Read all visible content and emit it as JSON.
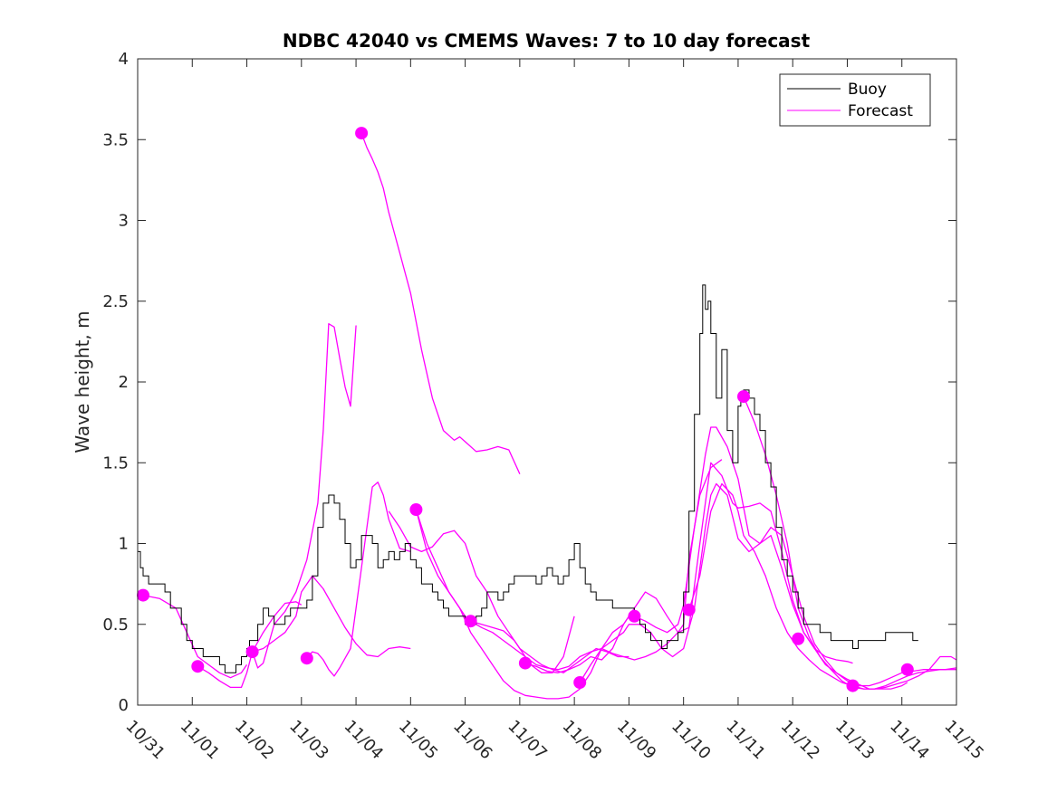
{
  "chart_data": {
    "type": "line",
    "title": "NDBC 42040 vs CMEMS Waves: 7 to 10 day forecast",
    "xlabel": "",
    "ylabel": "Wave height, m",
    "xlim": [
      0,
      15
    ],
    "ylim": [
      0,
      4
    ],
    "x_tick_values": [
      0,
      1,
      2,
      3,
      4,
      5,
      6,
      7,
      8,
      9,
      10,
      11,
      12,
      13,
      14,
      15
    ],
    "x_tick_labels": [
      "10/31",
      "11/01",
      "11/02",
      "11/03",
      "11/04",
      "11/05",
      "11/06",
      "11/07",
      "11/08",
      "11/09",
      "11/10",
      "11/11",
      "11/12",
      "11/13",
      "11/14",
      "11/15"
    ],
    "y_tick_values": [
      0,
      0.5,
      1,
      1.5,
      2,
      2.5,
      3,
      3.5,
      4
    ],
    "y_tick_labels": [
      "0",
      "0.5",
      "1",
      "1.5",
      "2",
      "2.5",
      "3",
      "3.5",
      "4"
    ],
    "legend": {
      "position": "top-right",
      "entries": [
        {
          "name": "Buoy",
          "color": "#000000"
        },
        {
          "name": "Forecast",
          "color": "#ff00ff"
        }
      ]
    },
    "colors": {
      "buoy": "#000000",
      "forecast": "#ff00ff",
      "axis": "#262626"
    },
    "buoy": {
      "name": "Buoy",
      "x": [
        0,
        0.05,
        0.1,
        0.2,
        0.35,
        0.5,
        0.6,
        0.8,
        0.9,
        1.0,
        1.1,
        1.2,
        1.3,
        1.4,
        1.5,
        1.6,
        1.7,
        1.8,
        1.9,
        2.0,
        2.05,
        2.1,
        2.2,
        2.3,
        2.4,
        2.5,
        2.6,
        2.7,
        2.8,
        2.9,
        3.0,
        3.1,
        3.2,
        3.3,
        3.4,
        3.5,
        3.6,
        3.7,
        3.8,
        3.9,
        4.0,
        4.1,
        4.2,
        4.3,
        4.4,
        4.5,
        4.6,
        4.7,
        4.8,
        4.9,
        5.0,
        5.1,
        5.2,
        5.3,
        5.4,
        5.5,
        5.6,
        5.7,
        5.8,
        5.9,
        6.0,
        6.1,
        6.2,
        6.3,
        6.4,
        6.5,
        6.6,
        6.7,
        6.8,
        6.9,
        7.0,
        7.1,
        7.2,
        7.3,
        7.4,
        7.5,
        7.6,
        7.7,
        7.8,
        7.9,
        8.0,
        8.1,
        8.2,
        8.3,
        8.4,
        8.5,
        8.6,
        8.7,
        8.8,
        8.9,
        9.0,
        9.1,
        9.2,
        9.3,
        9.4,
        9.5,
        9.6,
        9.7,
        9.8,
        9.9,
        10.0,
        10.1,
        10.2,
        10.3,
        10.35,
        10.4,
        10.45,
        10.5,
        10.6,
        10.7,
        10.8,
        10.9,
        11.0,
        11.05,
        11.1,
        11.2,
        11.3,
        11.4,
        11.5,
        11.6,
        11.7,
        11.8,
        11.9,
        12.0,
        12.1,
        12.2,
        12.3,
        12.4,
        12.5,
        12.6,
        12.7,
        12.8,
        12.9,
        13.0,
        13.1,
        13.2,
        13.3,
        13.4,
        13.5,
        13.6,
        13.7,
        13.8,
        13.9,
        14.0,
        14.1,
        14.2,
        14.3
      ],
      "y": [
        0.95,
        0.85,
        0.8,
        0.75,
        0.75,
        0.7,
        0.6,
        0.5,
        0.4,
        0.35,
        0.35,
        0.3,
        0.3,
        0.3,
        0.25,
        0.2,
        0.2,
        0.25,
        0.3,
        0.35,
        0.4,
        0.4,
        0.5,
        0.6,
        0.55,
        0.5,
        0.5,
        0.55,
        0.6,
        0.6,
        0.6,
        0.65,
        0.8,
        1.1,
        1.25,
        1.3,
        1.25,
        1.15,
        1.0,
        0.85,
        0.9,
        1.05,
        1.05,
        1.0,
        0.85,
        0.9,
        0.95,
        0.9,
        0.95,
        1.0,
        0.9,
        0.85,
        0.75,
        0.75,
        0.7,
        0.65,
        0.6,
        0.55,
        0.55,
        0.55,
        0.5,
        0.5,
        0.55,
        0.6,
        0.7,
        0.7,
        0.65,
        0.7,
        0.75,
        0.8,
        0.8,
        0.8,
        0.8,
        0.75,
        0.8,
        0.85,
        0.8,
        0.75,
        0.8,
        0.9,
        1.0,
        0.85,
        0.75,
        0.7,
        0.65,
        0.65,
        0.65,
        0.6,
        0.6,
        0.6,
        0.6,
        0.55,
        0.5,
        0.45,
        0.4,
        0.4,
        0.35,
        0.4,
        0.4,
        0.45,
        0.7,
        1.2,
        1.8,
        2.3,
        2.6,
        2.45,
        2.5,
        2.3,
        1.9,
        2.2,
        1.7,
        1.5,
        1.85,
        1.9,
        1.95,
        1.9,
        1.8,
        1.7,
        1.5,
        1.35,
        1.1,
        0.9,
        0.8,
        0.7,
        0.6,
        0.5,
        0.5,
        0.5,
        0.45,
        0.45,
        0.4,
        0.4,
        0.4,
        0.4,
        0.35,
        0.4,
        0.4,
        0.4,
        0.4,
        0.4,
        0.45,
        0.45,
        0.45,
        0.45,
        0.45,
        0.4,
        0.4
      ]
    },
    "forecast_series": [
      {
        "name": "Forecast",
        "x": [
          0.1,
          0.4,
          0.7,
          0.9,
          1.1,
          1.3,
          1.5,
          1.7,
          1.9,
          2.0
        ],
        "y": [
          0.68,
          0.66,
          0.6,
          0.45,
          0.3,
          0.25,
          0.2,
          0.17,
          0.2,
          0.25
        ]
      },
      {
        "name": "Forecast",
        "x": [
          1.1,
          1.3,
          1.5,
          1.7,
          1.9,
          2.0,
          2.1,
          2.3,
          2.5,
          2.7,
          2.9,
          3.0
        ],
        "y": [
          0.24,
          0.2,
          0.15,
          0.11,
          0.11,
          0.2,
          0.33,
          0.45,
          0.55,
          0.63,
          0.64,
          0.62
        ]
      },
      {
        "name": "Forecast",
        "x": [
          2.1,
          2.2,
          2.3,
          2.5,
          2.7,
          2.9,
          3.1,
          3.3,
          3.4,
          3.5,
          3.6,
          3.7,
          3.8,
          3.9,
          4.0
        ],
        "y": [
          0.33,
          0.23,
          0.26,
          0.5,
          0.58,
          0.7,
          0.9,
          1.25,
          1.7,
          2.36,
          2.34,
          2.15,
          1.97,
          1.85,
          2.35
        ]
      },
      {
        "name": "Forecast",
        "x": [
          3.1,
          3.2,
          3.3,
          3.4,
          3.5,
          3.6,
          3.7,
          3.9,
          4.0,
          4.2,
          4.3,
          4.4,
          4.5,
          4.6,
          4.8,
          5.0
        ],
        "y": [
          0.29,
          0.33,
          0.32,
          0.28,
          0.22,
          0.18,
          0.23,
          0.35,
          0.6,
          1.1,
          1.35,
          1.38,
          1.3,
          1.15,
          0.97,
          0.95
        ]
      },
      {
        "name": "Forecast",
        "x": [
          4.1,
          4.2,
          4.3,
          4.4,
          4.5,
          4.6,
          4.8,
          5.0,
          5.2,
          5.4,
          5.6,
          5.8,
          5.9,
          6.0,
          6.2,
          6.4,
          6.6,
          6.8,
          7.0
        ],
        "y": [
          3.54,
          3.45,
          3.38,
          3.3,
          3.2,
          3.05,
          2.8,
          2.55,
          2.2,
          1.9,
          1.7,
          1.64,
          1.66,
          1.63,
          1.57,
          1.58,
          1.6,
          1.58,
          1.43
        ]
      },
      {
        "name": "Forecast",
        "x": [
          2.1,
          2.3,
          2.5,
          2.7,
          2.9,
          3.0,
          3.2,
          3.4,
          3.6,
          3.8,
          4.0,
          4.2,
          4.4,
          4.6,
          4.8,
          5.0
        ],
        "y": [
          0.33,
          0.35,
          0.4,
          0.45,
          0.55,
          0.7,
          0.8,
          0.72,
          0.6,
          0.48,
          0.38,
          0.31,
          0.3,
          0.35,
          0.36,
          0.35
        ]
      },
      {
        "name": "Forecast",
        "x": [
          4.6,
          4.8,
          5.0,
          5.2,
          5.4,
          5.6,
          5.8,
          6.0,
          6.2,
          6.4,
          6.6,
          6.8,
          7.0,
          7.2,
          7.4,
          7.6,
          7.8,
          8.0
        ],
        "y": [
          1.2,
          1.1,
          0.98,
          0.95,
          0.98,
          1.06,
          1.08,
          1.0,
          0.8,
          0.7,
          0.55,
          0.45,
          0.35,
          0.25,
          0.2,
          0.2,
          0.3,
          0.55
        ]
      },
      {
        "name": "Forecast",
        "x": [
          5.1,
          5.3,
          5.5,
          5.7,
          5.9,
          6.0,
          6.1,
          6.3,
          6.5,
          6.7,
          6.9,
          7.0,
          7.2,
          7.4,
          7.6,
          7.8,
          8.0,
          8.2,
          8.4,
          8.6,
          8.8,
          9.0
        ],
        "y": [
          1.21,
          0.95,
          0.8,
          0.7,
          0.6,
          0.55,
          0.52,
          0.5,
          0.48,
          0.46,
          0.4,
          0.35,
          0.3,
          0.25,
          0.22,
          0.2,
          0.25,
          0.3,
          0.35,
          0.33,
          0.3,
          0.3
        ]
      },
      {
        "name": "Forecast",
        "x": [
          5.1,
          5.3,
          5.5,
          5.7,
          5.9,
          6.1,
          6.3,
          6.5,
          6.7,
          6.9,
          7.1,
          7.3,
          7.5,
          7.7,
          7.9,
          8.1,
          8.3,
          8.5,
          8.7,
          8.9,
          9.0
        ],
        "y": [
          1.21,
          1.0,
          0.85,
          0.7,
          0.6,
          0.45,
          0.35,
          0.25,
          0.15,
          0.09,
          0.06,
          0.05,
          0.04,
          0.04,
          0.05,
          0.1,
          0.2,
          0.35,
          0.45,
          0.5,
          0.55
        ]
      },
      {
        "name": "Forecast",
        "x": [
          6.1,
          6.3,
          6.5,
          6.7,
          6.9,
          7.1,
          7.3,
          7.5,
          7.7,
          7.9,
          8.1,
          8.3,
          8.5,
          8.7,
          8.9,
          9.1,
          9.3,
          9.5,
          9.7,
          9.9,
          10.0,
          10.1,
          10.3,
          10.5,
          10.7
        ],
        "y": [
          0.52,
          0.48,
          0.45,
          0.4,
          0.35,
          0.3,
          0.25,
          0.23,
          0.22,
          0.24,
          0.3,
          0.33,
          0.35,
          0.32,
          0.3,
          0.28,
          0.3,
          0.33,
          0.38,
          0.45,
          0.5,
          0.9,
          1.3,
          1.47,
          1.52
        ]
      },
      {
        "name": "Forecast",
        "x": [
          7.1,
          7.3,
          7.5,
          7.7,
          7.9,
          8.1,
          8.3,
          8.5,
          8.7,
          8.9,
          9.1,
          9.3,
          9.5,
          9.7,
          9.9,
          10.1,
          10.3,
          10.5,
          10.7,
          10.9,
          11.0,
          11.2,
          11.4,
          11.6,
          11.8,
          12.0,
          12.2,
          12.4,
          12.6,
          12.8,
          13.0,
          13.1
        ],
        "y": [
          0.26,
          0.24,
          0.21,
          0.2,
          0.22,
          0.25,
          0.3,
          0.28,
          0.35,
          0.5,
          0.6,
          0.7,
          0.66,
          0.55,
          0.45,
          0.48,
          1.0,
          1.5,
          1.42,
          1.25,
          1.22,
          1.23,
          1.25,
          1.2,
          0.95,
          0.65,
          0.45,
          0.35,
          0.3,
          0.28,
          0.27,
          0.26
        ]
      },
      {
        "name": "Forecast",
        "x": [
          8.1,
          8.3,
          8.5,
          8.7,
          8.9,
          9.0,
          9.2,
          9.4,
          9.6,
          9.8,
          10.0,
          10.2,
          10.4,
          10.5,
          10.6,
          10.8,
          11.0,
          11.2,
          11.4,
          11.6,
          11.8,
          12.0,
          12.2,
          12.4,
          12.6,
          12.8,
          13.0,
          13.2,
          13.4,
          13.6,
          13.8,
          14.0,
          14.1
        ],
        "y": [
          0.14,
          0.25,
          0.35,
          0.4,
          0.45,
          0.5,
          0.5,
          0.45,
          0.35,
          0.3,
          0.35,
          0.6,
          1.1,
          1.3,
          1.37,
          1.3,
          1.03,
          0.95,
          1.0,
          1.05,
          0.85,
          0.62,
          0.45,
          0.35,
          0.25,
          0.2,
          0.16,
          0.13,
          0.1,
          0.1,
          0.1,
          0.12,
          0.14
        ]
      },
      {
        "name": "Forecast",
        "x": [
          9.1,
          9.3,
          9.5,
          9.7,
          9.9,
          10.0,
          10.2,
          10.4,
          10.5,
          10.6,
          10.8,
          11.0,
          11.2,
          11.4,
          11.6,
          11.8,
          12.0,
          12.2,
          12.4,
          12.6,
          12.8,
          13.0,
          13.2,
          13.4,
          13.6,
          13.8,
          14.0,
          14.2,
          14.4,
          14.6,
          14.8,
          15.0
        ],
        "y": [
          0.55,
          0.52,
          0.48,
          0.45,
          0.5,
          0.62,
          1.1,
          1.55,
          1.72,
          1.72,
          1.6,
          1.4,
          1.05,
          1.0,
          1.1,
          1.05,
          0.8,
          0.55,
          0.38,
          0.28,
          0.2,
          0.15,
          0.12,
          0.12,
          0.14,
          0.17,
          0.2,
          0.21,
          0.22,
          0.22,
          0.22,
          0.23
        ]
      },
      {
        "name": "Forecast",
        "x": [
          10.1,
          10.3,
          10.5,
          10.7,
          10.9,
          11.0,
          11.1,
          11.3,
          11.5,
          11.7,
          11.9,
          12.1,
          12.3,
          12.5,
          12.7,
          12.9,
          13.1,
          13.3,
          13.5,
          13.7,
          13.9,
          14.1,
          14.3,
          14.5,
          14.7,
          14.9,
          15.0
        ],
        "y": [
          0.59,
          0.8,
          1.2,
          1.37,
          1.3,
          1.2,
          1.05,
          0.95,
          0.8,
          0.6,
          0.45,
          0.35,
          0.28,
          0.22,
          0.18,
          0.14,
          0.12,
          0.1,
          0.1,
          0.11,
          0.13,
          0.15,
          0.18,
          0.22,
          0.3,
          0.3,
          0.28
        ]
      },
      {
        "name": "Forecast",
        "x": [
          11.1,
          11.3,
          11.5,
          11.7,
          11.9,
          12.0,
          12.1,
          12.3,
          12.5,
          12.7,
          12.9,
          13.1,
          13.3,
          13.5,
          13.7,
          13.9,
          14.1,
          14.3,
          14.5,
          14.7,
          14.9,
          15.0
        ],
        "y": [
          1.91,
          1.75,
          1.55,
          1.3,
          1.0,
          0.8,
          0.6,
          0.42,
          0.3,
          0.22,
          0.15,
          0.11,
          0.1,
          0.1,
          0.12,
          0.15,
          0.18,
          0.2,
          0.21,
          0.22,
          0.22,
          0.22
        ]
      }
    ],
    "forecast_markers": {
      "x": [
        0.1,
        1.1,
        2.1,
        3.1,
        4.1,
        5.1,
        6.1,
        7.1,
        8.1,
        9.1,
        10.1,
        11.1,
        12.1,
        13.1,
        14.1
      ],
      "y": [
        0.68,
        0.24,
        0.33,
        0.29,
        3.54,
        1.21,
        0.52,
        0.26,
        0.14,
        0.55,
        0.59,
        1.91,
        0.41,
        0.12,
        0.22
      ]
    }
  }
}
